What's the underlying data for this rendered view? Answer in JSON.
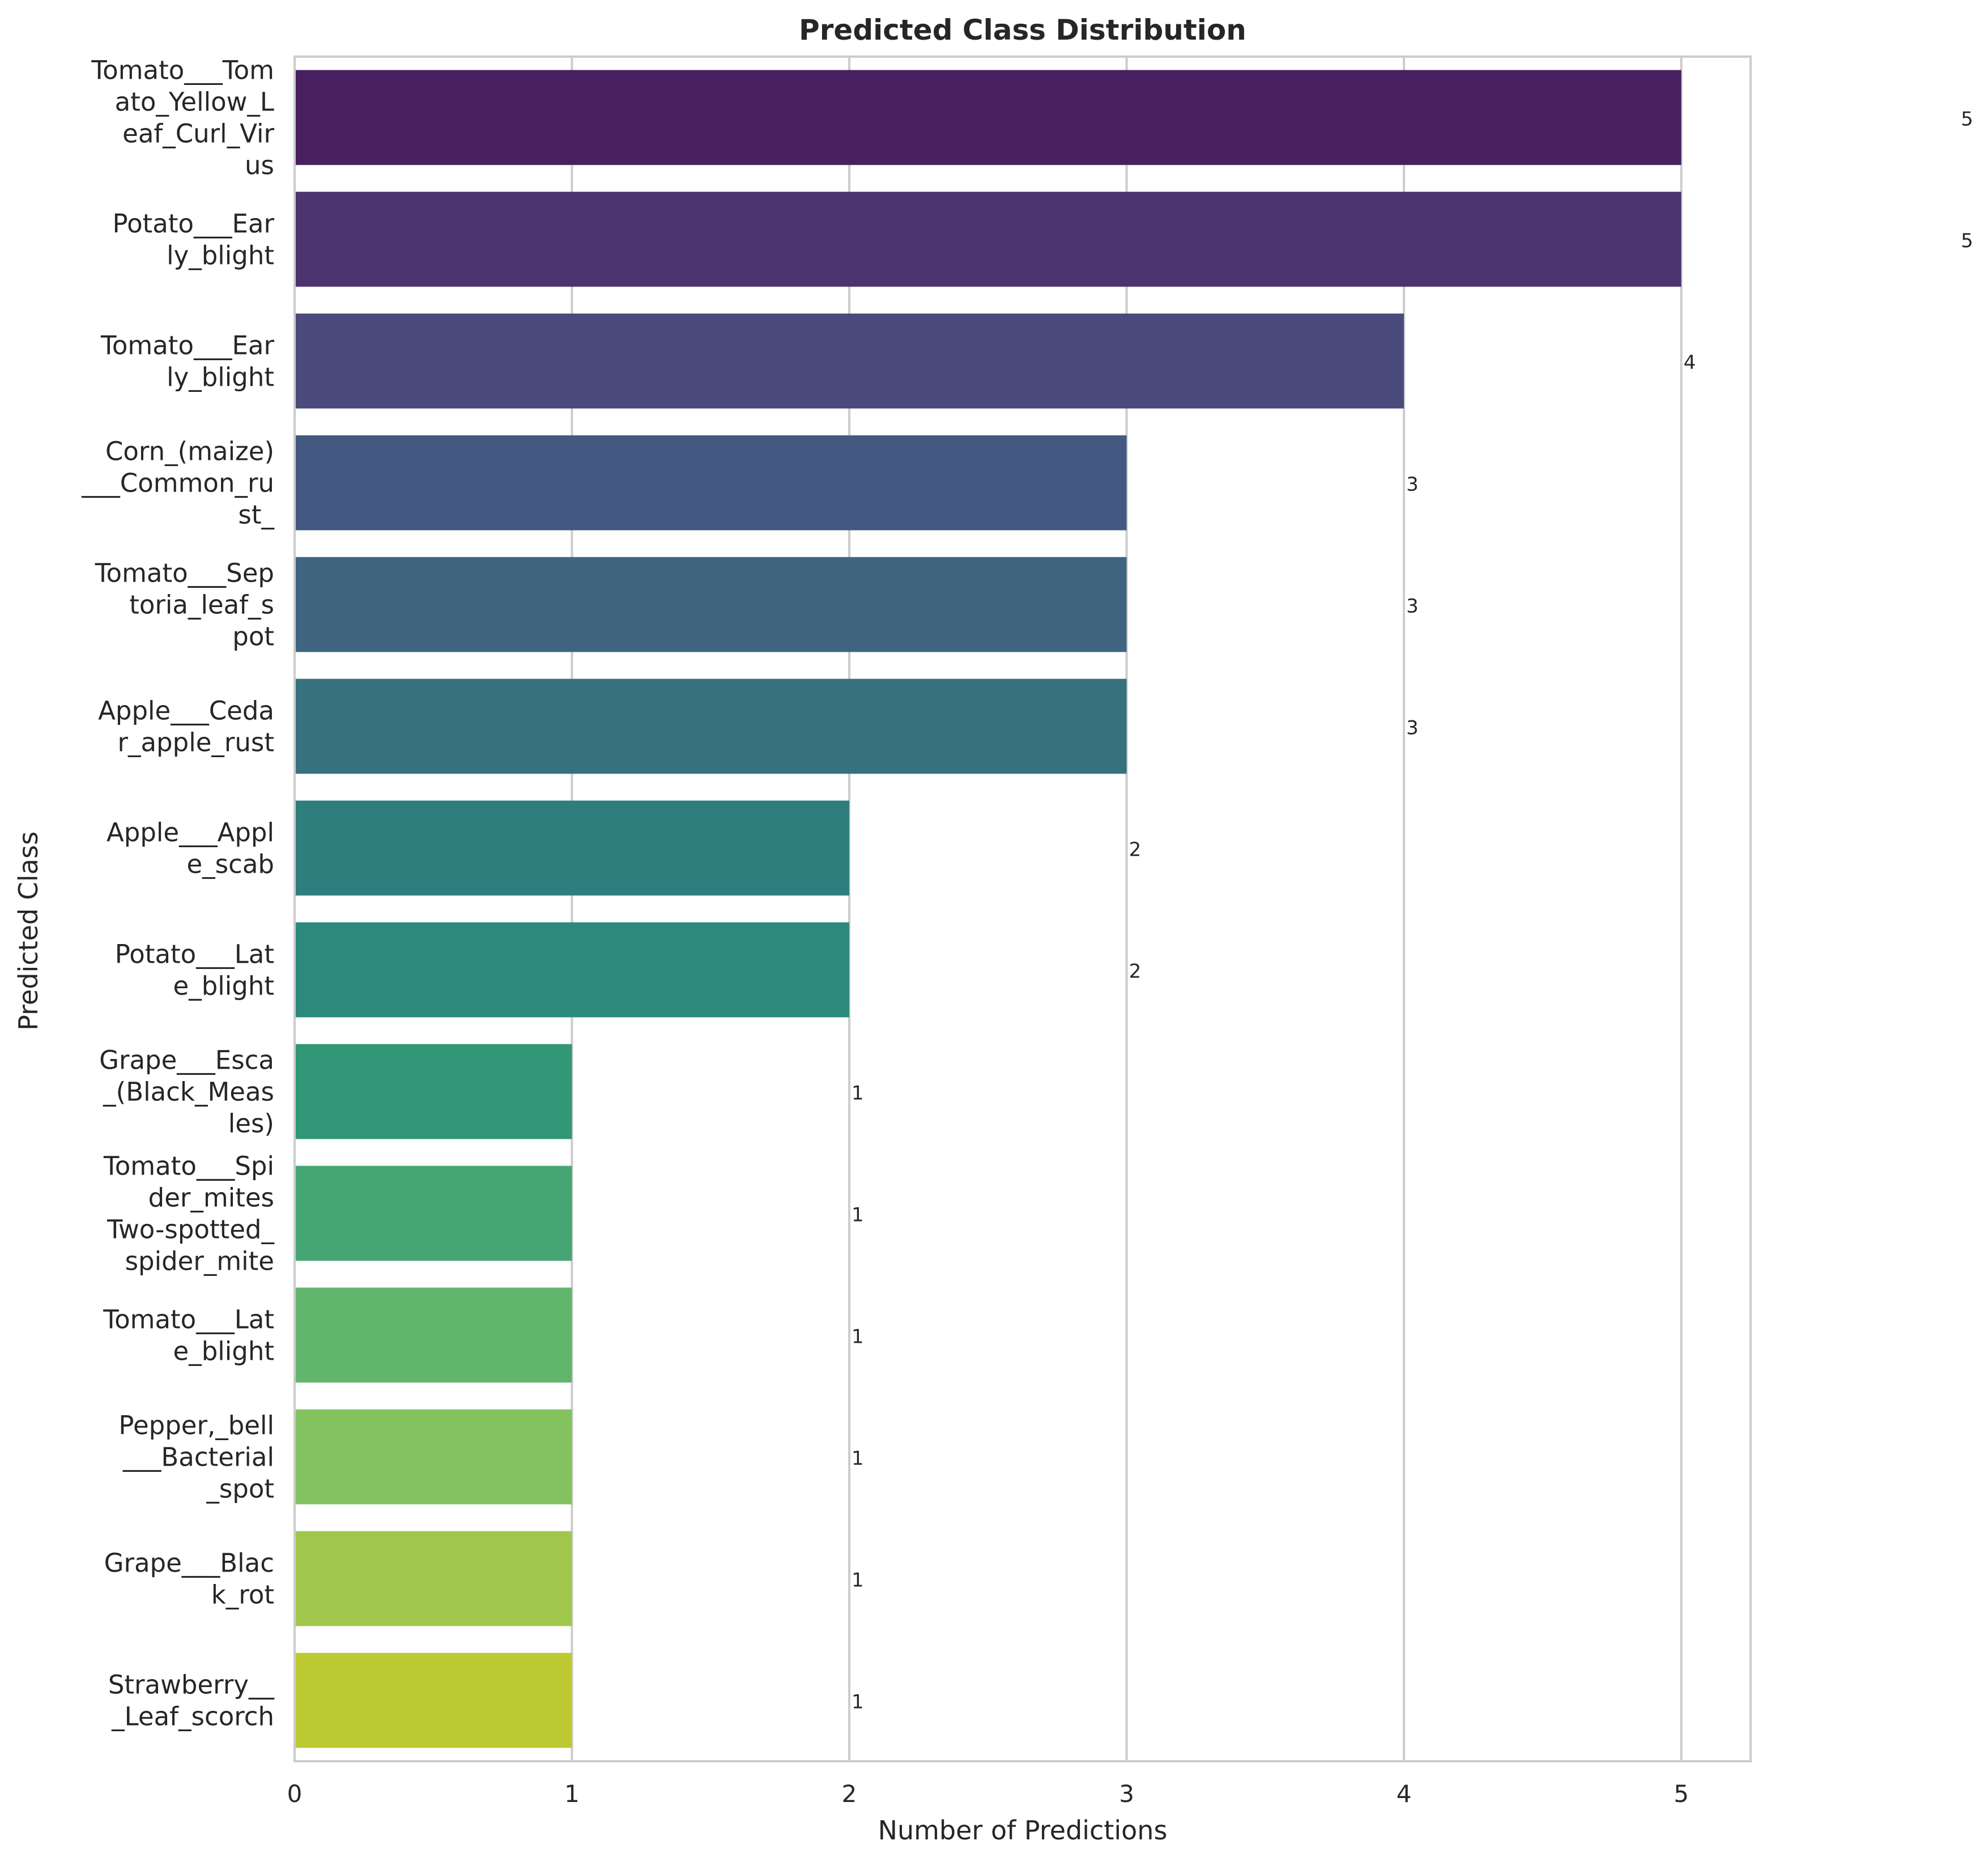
{
  "chart_data": {
    "type": "bar",
    "orientation": "horizontal",
    "title": "Predicted Class Distribution",
    "xlabel": "Number of Predictions",
    "ylabel": "Predicted Class",
    "xlim": [
      0,
      5.25
    ],
    "x_ticks": [
      0,
      1,
      2,
      3,
      4,
      5
    ],
    "grid": "vertical",
    "categories": [
      "Tomato___Tomato_Yellow_Leaf_Curl_Virus",
      "Potato___Early_blight",
      "Tomato___Early_blight",
      "Corn_(maize)___Common_rust_",
      "Tomato___Septoria_leaf_spot",
      "Apple___Cedar_apple_rust",
      "Apple___Apple_scab",
      "Potato___Late_blight",
      "Grape___Esca_(Black_Measles)",
      "Tomato___Spider_mites Two-spotted_spider_mite",
      "Tomato___Late_blight",
      "Pepper,_bell___Bacterial_spot",
      "Grape___Black_rot",
      "Strawberry___Leaf_scorch"
    ],
    "category_lines": [
      [
        "Tomato___Tom",
        "ato_Yellow_L",
        "eaf_Curl_Vir",
        "us"
      ],
      [
        "Potato___Ear",
        "ly_blight"
      ],
      [
        "Tomato___Ear",
        "ly_blight"
      ],
      [
        "Corn_(maize)",
        "___Common_ru",
        "st_"
      ],
      [
        "Tomato___Sep",
        "toria_leaf_s",
        "pot"
      ],
      [
        "Apple___Ceda",
        "r_apple_rust"
      ],
      [
        "Apple___Appl",
        "e_scab"
      ],
      [
        "Potato___Lat",
        "e_blight"
      ],
      [
        "Grape___Esca",
        "_(Black_Meas",
        "les)"
      ],
      [
        "Tomato___Spi",
        "der_mites",
        "Two-spotted_",
        "spider_mite"
      ],
      [
        "Tomato___Lat",
        "e_blight"
      ],
      [
        "Pepper,_bell",
        "___Bacterial",
        "_spot"
      ],
      [
        "Grape___Blac",
        "k_rot"
      ],
      [
        "Strawberry__",
        "_Leaf_scorch"
      ]
    ],
    "values": [
      5,
      5,
      4,
      3,
      3,
      3,
      2,
      2,
      1,
      1,
      1,
      1,
      1,
      1
    ],
    "value_labels": [
      "5",
      "5",
      "4",
      "3",
      "3",
      "3",
      "2",
      "2",
      "1",
      "1",
      "1",
      "1",
      "1",
      "1"
    ],
    "colors": [
      "#482060",
      "#4b3470",
      "#4a4b7c",
      "#445981",
      "#3f6580",
      "#37717e",
      "#2f7e7e",
      "#2b8a7c",
      "#319776",
      "#45a673",
      "#62b56c",
      "#83c25f",
      "#a0c74b",
      "#bcc932"
    ]
  }
}
